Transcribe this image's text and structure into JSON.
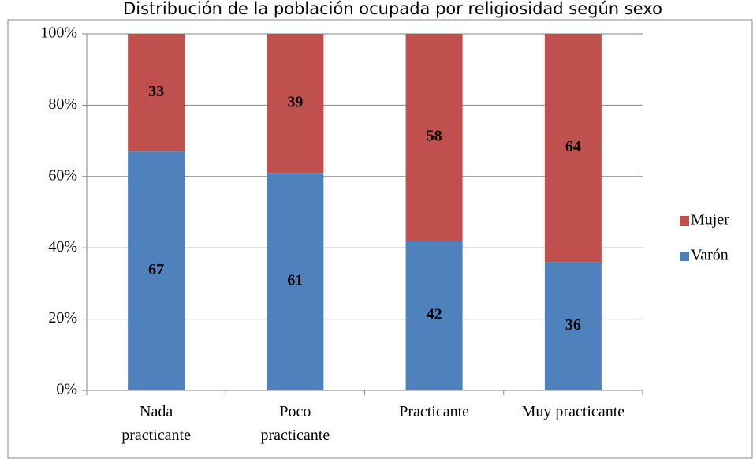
{
  "chart_data": {
    "type": "stacked_bar",
    "title": "Distribución de la población ocupada por religiosidad según sexo",
    "categories": [
      "Nada\npracticante",
      "Poco\npracticante",
      "Practicante",
      "Muy practicante"
    ],
    "series": [
      {
        "name": "Varón",
        "color": "#4f81bd",
        "values": [
          67,
          61,
          42,
          36
        ]
      },
      {
        "name": "Mujer",
        "color": "#c0504d",
        "values": [
          33,
          39,
          58,
          64
        ]
      }
    ],
    "ylim": [
      0,
      100
    ],
    "yticks": [
      {
        "value": 0,
        "label": "0%"
      },
      {
        "value": 20,
        "label": "20%"
      },
      {
        "value": 40,
        "label": "40%"
      },
      {
        "value": 60,
        "label": "60%"
      },
      {
        "value": 80,
        "label": "80%"
      },
      {
        "value": 100,
        "label": "100%"
      }
    ],
    "grid": true,
    "legend": "right"
  }
}
